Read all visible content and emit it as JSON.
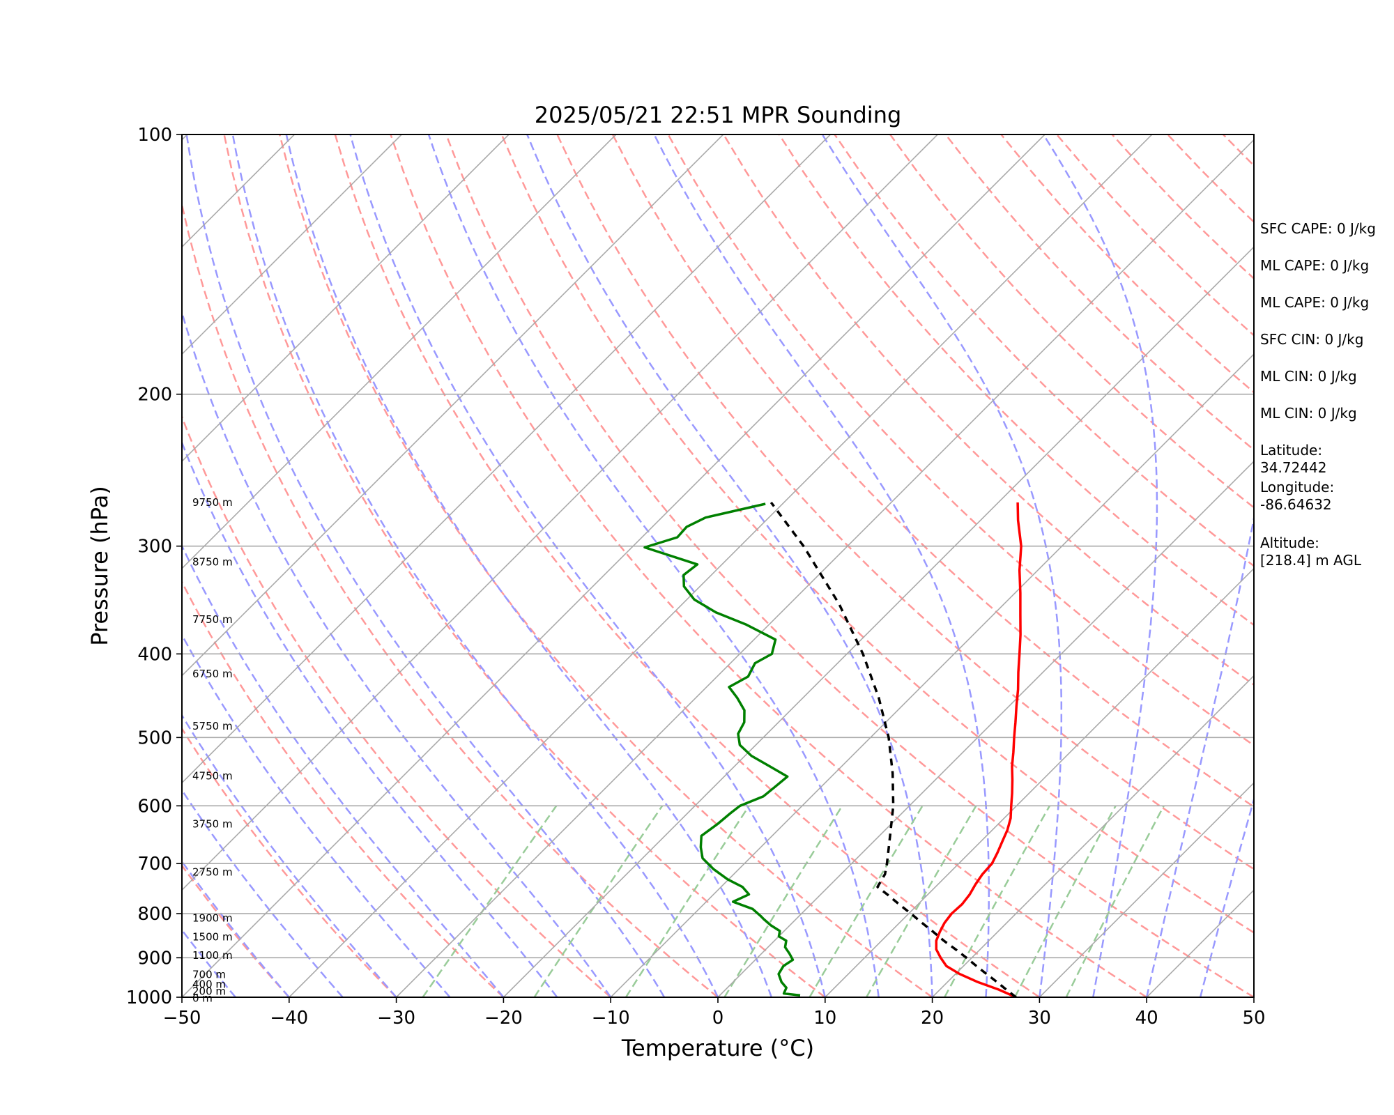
{
  "chart_data": {
    "type": "line",
    "title": "2025/05/21 22:51 MPR Sounding",
    "xlabel": "Temperature (°C)",
    "ylabel": "Pressure (hPa)",
    "xlim": [
      -50,
      50
    ],
    "ylim": [
      1000,
      100
    ],
    "y_scale": "log",
    "skew_ratio": 1,
    "xticks": [
      "−50",
      "−40",
      "−30",
      "−20",
      "−10",
      "0",
      "10",
      "20",
      "30",
      "40",
      "50"
    ],
    "xtick_values": [
      -50,
      -40,
      -30,
      -20,
      -10,
      0,
      10,
      20,
      30,
      40,
      50
    ],
    "yticks": [
      "100",
      "200",
      "300",
      "400",
      "500",
      "600",
      "700",
      "800",
      "900",
      "1000"
    ],
    "ytick_values": [
      100,
      200,
      300,
      400,
      500,
      600,
      700,
      800,
      900,
      1000
    ],
    "grid": true,
    "height_labels": [
      {
        "p": 267,
        "text": "9750 m"
      },
      {
        "p": 313,
        "text": "8750 m"
      },
      {
        "p": 365,
        "text": "7750 m"
      },
      {
        "p": 422,
        "text": "6750 m"
      },
      {
        "p": 485,
        "text": "5750 m"
      },
      {
        "p": 554,
        "text": "4750 m"
      },
      {
        "p": 630,
        "text": "3750 m"
      },
      {
        "p": 716,
        "text": "2750 m"
      },
      {
        "p": 810,
        "text": "1900 m"
      },
      {
        "p": 851,
        "text": "1500 m"
      },
      {
        "p": 894,
        "text": "1100 m"
      },
      {
        "p": 941,
        "text": "700 m"
      },
      {
        "p": 966,
        "text": "400 m"
      },
      {
        "p": 984,
        "text": "200 m"
      },
      {
        "p": 1003,
        "text": "0 m"
      }
    ],
    "series": [
      {
        "kind": "temperature",
        "color": "#ff0000",
        "points": [
          [
            1000,
            27.8
          ],
          [
            980,
            25.5
          ],
          [
            960,
            22.8
          ],
          [
            940,
            20.4
          ],
          [
            920,
            18.4
          ],
          [
            900,
            17.1
          ],
          [
            880,
            15.9
          ],
          [
            860,
            15.1
          ],
          [
            840,
            14.6
          ],
          [
            820,
            14.2
          ],
          [
            800,
            14.0
          ],
          [
            780,
            14.1
          ],
          [
            760,
            13.9
          ],
          [
            740,
            13.5
          ],
          [
            720,
            13.2
          ],
          [
            700,
            13.1
          ],
          [
            680,
            12.6
          ],
          [
            660,
            12.0
          ],
          [
            640,
            11.4
          ],
          [
            620,
            10.6
          ],
          [
            600,
            9.5
          ],
          [
            580,
            8.4
          ],
          [
            560,
            7.2
          ],
          [
            540,
            5.9
          ],
          [
            520,
            4.7
          ],
          [
            500,
            3.4
          ],
          [
            480,
            2.1
          ],
          [
            460,
            0.7
          ],
          [
            440,
            -0.7
          ],
          [
            420,
            -2.3
          ],
          [
            400,
            -3.9
          ],
          [
            380,
            -5.6
          ],
          [
            360,
            -7.5
          ],
          [
            340,
            -9.5
          ],
          [
            320,
            -11.7
          ],
          [
            300,
            -13.8
          ],
          [
            280,
            -16.5
          ],
          [
            267,
            -18.2
          ]
        ]
      },
      {
        "kind": "parcel",
        "color": "#000000",
        "dash": "dashed",
        "points": [
          [
            1000,
            27.8
          ],
          [
            980,
            26.2
          ],
          [
            960,
            24.6
          ],
          [
            940,
            22.9
          ],
          [
            920,
            21.2
          ],
          [
            900,
            19.5
          ],
          [
            880,
            17.7
          ],
          [
            860,
            15.8
          ],
          [
            840,
            14.0
          ],
          [
            820,
            12.1
          ],
          [
            800,
            10.2
          ],
          [
            780,
            8.2
          ],
          [
            760,
            6.2
          ],
          [
            745,
            4.6
          ],
          [
            720,
            4.1
          ],
          [
            700,
            3.3
          ],
          [
            680,
            2.4
          ],
          [
            650,
            1.0
          ],
          [
            600,
            -1.5
          ],
          [
            550,
            -4.6
          ],
          [
            500,
            -8.3
          ],
          [
            450,
            -12.9
          ],
          [
            400,
            -18.5
          ],
          [
            350,
            -25.4
          ],
          [
            300,
            -34.1
          ],
          [
            267,
            -41.2
          ]
        ]
      },
      {
        "kind": "dewpoint",
        "color": "#008000",
        "points": [
          [
            995,
            7.5
          ],
          [
            990,
            5.8
          ],
          [
            975,
            5.5
          ],
          [
            960,
            4.5
          ],
          [
            940,
            3.5
          ],
          [
            920,
            3.2
          ],
          [
            905,
            3.5
          ],
          [
            890,
            2.6
          ],
          [
            875,
            1.6
          ],
          [
            860,
            1.1
          ],
          [
            850,
            0.0
          ],
          [
            838,
            -0.4
          ],
          [
            825,
            -1.8
          ],
          [
            812,
            -3.0
          ],
          [
            805,
            -3.6
          ],
          [
            790,
            -5.0
          ],
          [
            775,
            -7.5
          ],
          [
            760,
            -6.7
          ],
          [
            745,
            -8.0
          ],
          [
            730,
            -10.1
          ],
          [
            710,
            -12.4
          ],
          [
            690,
            -14.4
          ],
          [
            670,
            -15.6
          ],
          [
            650,
            -16.6
          ],
          [
            630,
            -16.2
          ],
          [
            612,
            -16.0
          ],
          [
            600,
            -15.8
          ],
          [
            585,
            -14.5
          ],
          [
            570,
            -14.3
          ],
          [
            555,
            -14.1
          ],
          [
            540,
            -16.7
          ],
          [
            525,
            -19.4
          ],
          [
            510,
            -21.5
          ],
          [
            495,
            -22.7
          ],
          [
            480,
            -23.2
          ],
          [
            465,
            -24.3
          ],
          [
            450,
            -26.1
          ],
          [
            437,
            -27.9
          ],
          [
            425,
            -27.1
          ],
          [
            410,
            -27.7
          ],
          [
            400,
            -27.0
          ],
          [
            385,
            -28.0
          ],
          [
            370,
            -32.1
          ],
          [
            358,
            -36.1
          ],
          [
            346,
            -39.3
          ],
          [
            334,
            -41.5
          ],
          [
            324,
            -42.6
          ],
          [
            315,
            -42.3
          ],
          [
            301,
            -48.8
          ],
          [
            293,
            -46.7
          ],
          [
            285,
            -46.8
          ],
          [
            278,
            -45.9
          ],
          [
            268,
            -41.6
          ]
        ]
      }
    ],
    "stats": [
      "SFC CAPE: 0 J/kg",
      "ML CAPE: 0 J/kg",
      "ML CAPE: 0 J/kg",
      "SFC CIN: 0 J/kg",
      "ML CIN: 0 J/kg",
      "ML CIN: 0 J/kg"
    ],
    "location": [
      {
        "label": "Latitude:",
        "value": "34.72442"
      },
      {
        "label": "Longitude:",
        "value": "-86.64632"
      },
      {
        "label": "Altitude:",
        "value": "[218.4] m AGL"
      }
    ],
    "colors": {
      "dry_adiabat": "#ff9999",
      "moist_adiabat": "#9999ff",
      "mixing_ratio": "#99cc99",
      "isotherm": "#aaaaaa",
      "isobar": "#aaaaaa"
    }
  }
}
